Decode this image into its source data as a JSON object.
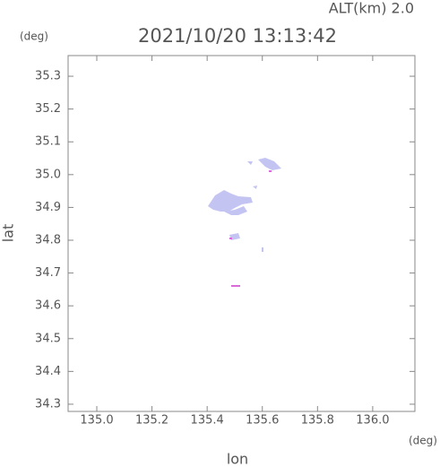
{
  "chart_data": {
    "type": "map",
    "title": "2021/10/20 13:13:42",
    "subtitle": "ALT(km) 2.0",
    "x_label": "lon",
    "y_label": "lat",
    "x_unit": "(deg)",
    "y_unit": "(deg)",
    "xlim": [
      134.896,
      136.153
    ],
    "ylim": [
      34.278,
      35.363
    ],
    "xticks": [
      {
        "value": 135.0,
        "label": "135.0"
      },
      135.2,
      135.4,
      135.6,
      135.8,
      {
        "value": 136.0,
        "label": "136.0"
      }
    ],
    "yticks": [
      34.3,
      34.4,
      34.5,
      34.6,
      34.7,
      34.8,
      34.9,
      {
        "value": 35.0,
        "label": "35.0"
      },
      35.1,
      35.2,
      35.3
    ]
  }
}
